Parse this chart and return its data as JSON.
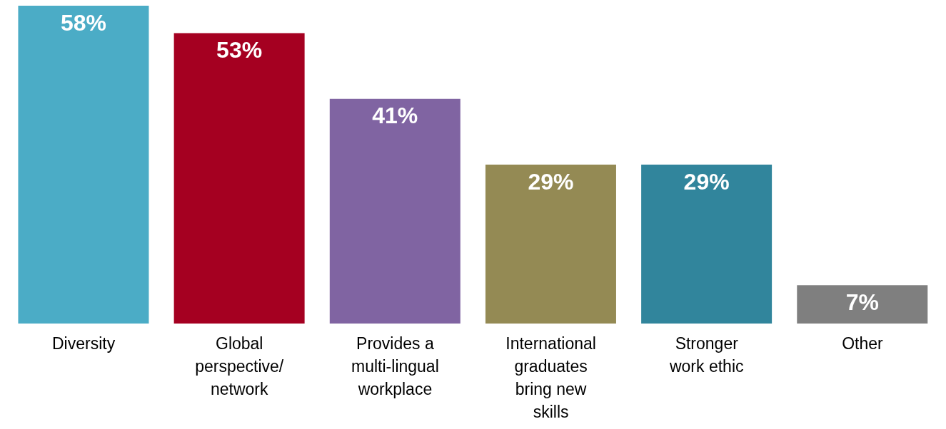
{
  "chart_data": {
    "type": "bar",
    "categories": [
      "Diversity",
      "Global perspective/ network",
      "Provides a multi-lingual workplace",
      "International graduates bring new skills",
      "Stronger work ethic",
      "Other"
    ],
    "values": [
      58,
      53,
      41,
      29,
      29,
      7
    ],
    "value_labels": [
      "58%",
      "53%",
      "41%",
      "29%",
      "29%",
      "7%"
    ],
    "colors": [
      "#4bacc6",
      "#a50021",
      "#8064a2",
      "#948a54",
      "#31859c",
      "#7f7f7f"
    ],
    "tick_labels": "x"
  }
}
